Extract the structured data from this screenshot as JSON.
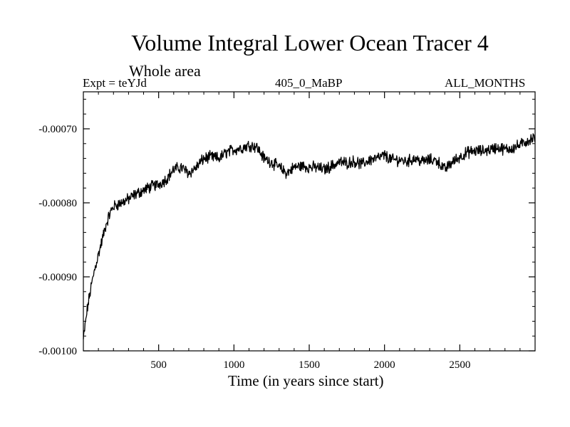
{
  "chart_data": {
    "type": "line",
    "title": "Volume Integral Lower Ocean Tracer 4",
    "subtitle": "Whole area",
    "experiment": "Expt = teYJd",
    "run_label": "405_0_MaBP",
    "period_label": "ALL_MONTHS",
    "xlabel": "Time (in years since start)",
    "ylabel": "",
    "xlim": [
      0,
      3000
    ],
    "ylim": [
      -0.001,
      -0.00065
    ],
    "x_ticks": [
      500,
      1000,
      1500,
      2000,
      2500
    ],
    "x_tick_labels": [
      "500",
      "1000",
      "1500",
      "2000",
      "2500"
    ],
    "y_ticks": [
      -0.001,
      -0.0009,
      -0.0008,
      -0.0007
    ],
    "y_tick_labels": [
      "-0.00100",
      "-0.00090",
      "-0.00080",
      "-0.00070"
    ],
    "grid": false,
    "series": [
      {
        "name": "tracer4",
        "color": "#000000",
        "x": [
          0,
          25,
          50,
          75,
          100,
          125,
          150,
          175,
          200,
          250,
          300,
          350,
          400,
          450,
          500,
          550,
          600,
          650,
          700,
          750,
          800,
          850,
          900,
          950,
          1000,
          1050,
          1100,
          1150,
          1200,
          1250,
          1300,
          1350,
          1400,
          1450,
          1500,
          1550,
          1600,
          1650,
          1700,
          1750,
          1800,
          1850,
          1900,
          1950,
          2000,
          2050,
          2100,
          2150,
          2200,
          2250,
          2300,
          2350,
          2400,
          2450,
          2500,
          2550,
          2600,
          2650,
          2700,
          2750,
          2800,
          2850,
          2900,
          2950,
          3000
        ],
        "y": [
          -0.000985,
          -0.000945,
          -0.000915,
          -0.00089,
          -0.00087,
          -0.00085,
          -0.00083,
          -0.000815,
          -0.000805,
          -0.0008,
          -0.000795,
          -0.000788,
          -0.000783,
          -0.000778,
          -0.000775,
          -0.000768,
          -0.000755,
          -0.000752,
          -0.00076,
          -0.000752,
          -0.00074,
          -0.000738,
          -0.00074,
          -0.000732,
          -0.000728,
          -0.000726,
          -0.000722,
          -0.000724,
          -0.00074,
          -0.000745,
          -0.000752,
          -0.00076,
          -0.000752,
          -0.00075,
          -0.000752,
          -0.000752,
          -0.000755,
          -0.00075,
          -0.000745,
          -0.000746,
          -0.000744,
          -0.000748,
          -0.000742,
          -0.00074,
          -0.000736,
          -0.000742,
          -0.000742,
          -0.000744,
          -0.00074,
          -0.000744,
          -0.000742,
          -0.000743,
          -0.000755,
          -0.000745,
          -0.000738,
          -0.000732,
          -0.00073,
          -0.00073,
          -0.000728,
          -0.000725,
          -0.000728,
          -0.000726,
          -0.000722,
          -0.000716,
          -0.000712
        ]
      }
    ]
  }
}
